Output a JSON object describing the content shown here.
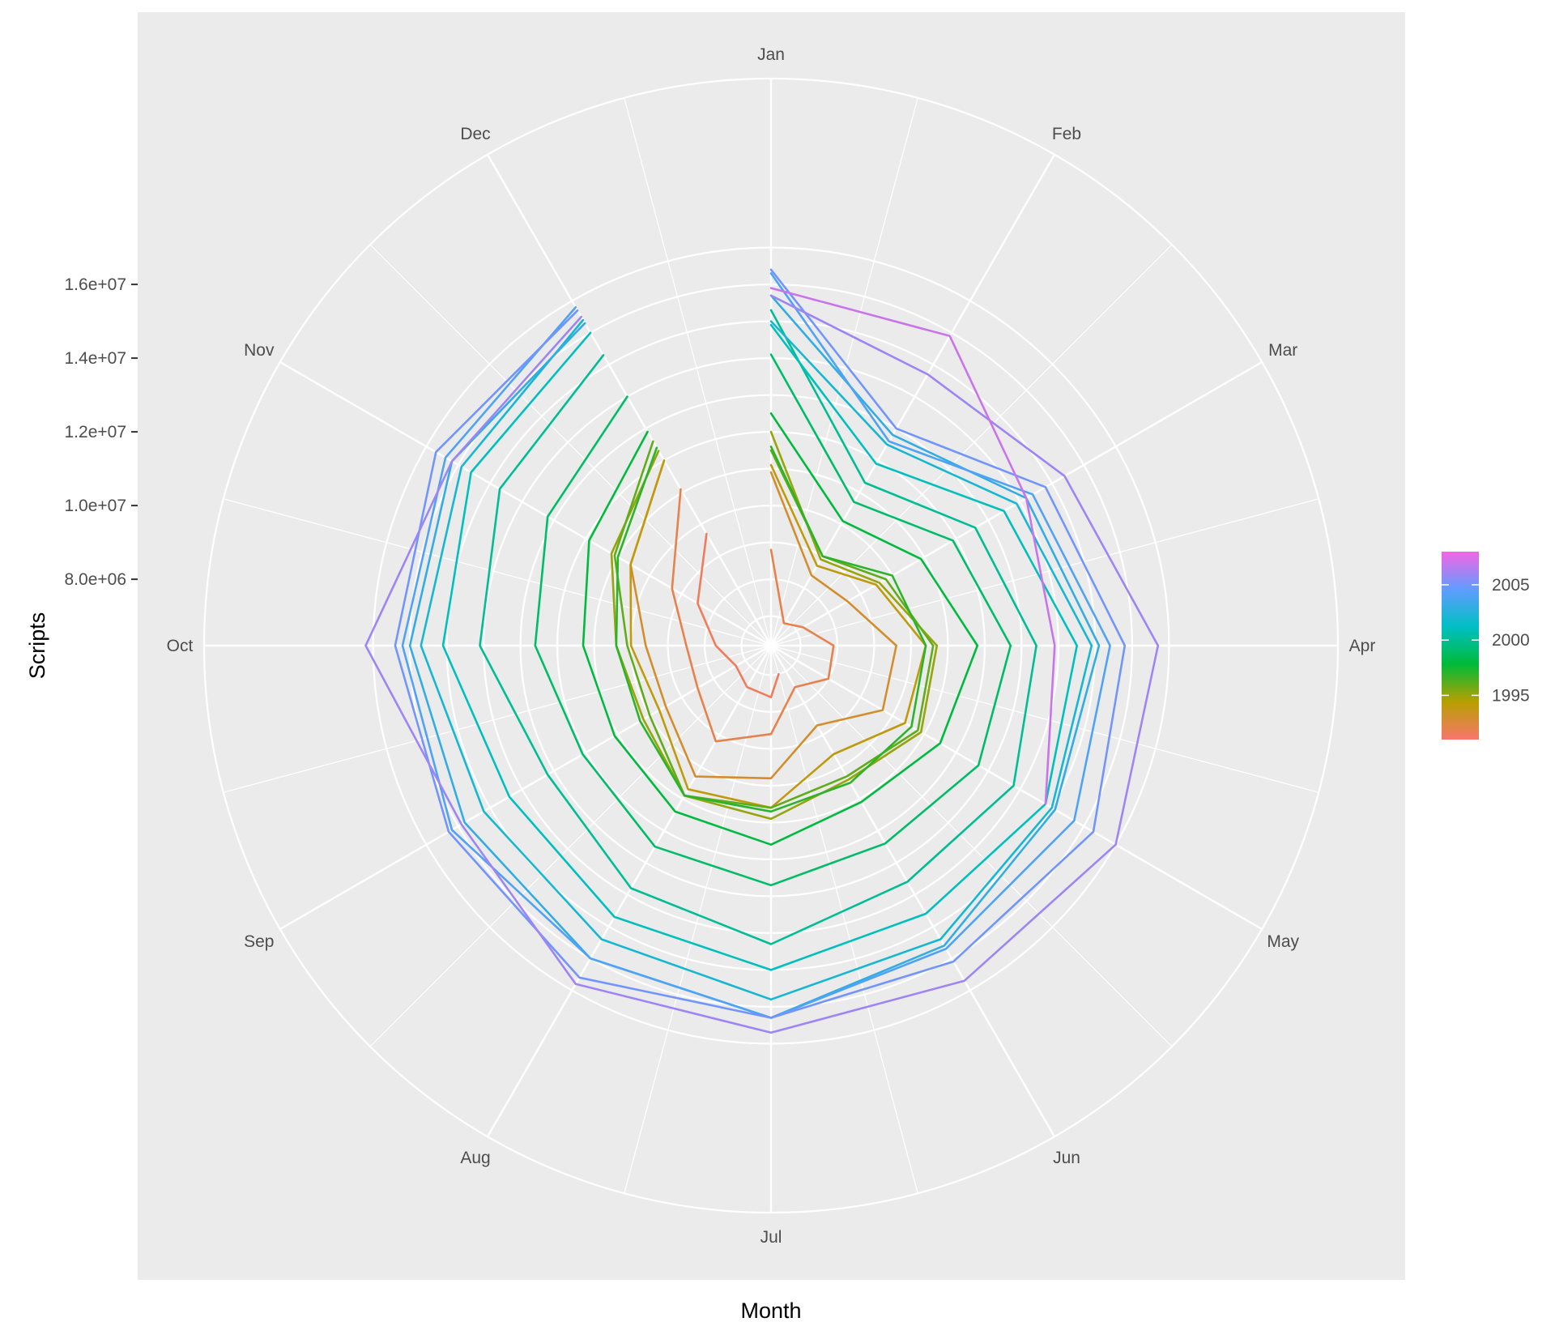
{
  "chart_data": {
    "type": "line",
    "coord": "polar",
    "xlabel": "Month",
    "ylabel": "Scripts",
    "categories": [
      "Jan",
      "Feb",
      "Mar",
      "Apr",
      "May",
      "Jun",
      "Jul",
      "Aug",
      "Sep",
      "Oct",
      "Nov",
      "Dec"
    ],
    "y_ticks": [
      8000000,
      10000000,
      12000000,
      14000000,
      16000000
    ],
    "y_tick_labels": [
      "8.0e+06",
      "1.0e+07",
      "1.2e+07",
      "1.4e+07",
      "1.6e+07"
    ],
    "ylim": [
      6200000,
      18000000
    ],
    "grid": true,
    "legend": {
      "position": "right",
      "type": "colorbar",
      "title": "",
      "breaks": [
        1995,
        2000,
        2005
      ],
      "break_labels": [
        "1995",
        "2000",
        "2005"
      ],
      "range": [
        1991,
        2008
      ],
      "colors": [
        "#F8766D",
        "#B79F00",
        "#00BA38",
        "#00BFC4",
        "#619CFF",
        "#F564E3"
      ]
    },
    "series": [
      {
        "year": 1991.5,
        "x": [
          6.5,
          7,
          8,
          9,
          10,
          11,
          12
        ],
        "values": [
          7000000,
          7600000,
          7500000,
          7300000,
          7700000,
          8500000,
          9700000
        ]
      },
      {
        "year": 1992,
        "x": [
          1,
          2,
          3,
          4,
          5,
          6,
          7,
          8,
          9,
          10,
          11,
          12
        ],
        "values": [
          8800000,
          6900000,
          7200000,
          7900000,
          8000000,
          7500000,
          8600000,
          9200000,
          8500000,
          8500000,
          9300000,
          11100000
        ]
      },
      {
        "year": 1993,
        "x": [
          1,
          2,
          3,
          4,
          5,
          6,
          7,
          8,
          9,
          10,
          11,
          12
        ],
        "values": [
          10900000,
          8400000,
          8600000,
          9600000,
          9700000,
          8700000,
          9800000,
          10300000,
          9500000,
          9600000,
          10600000,
          12000000
        ]
      },
      {
        "year": 1994,
        "x": [
          1,
          2,
          3,
          4,
          5,
          6,
          7,
          8,
          9,
          10,
          11,
          12
        ],
        "values": [
          11100000,
          8700000,
          9500000,
          10400000,
          10400000,
          9600000,
          10600000,
          10700000,
          9700000,
          10000000,
          10600000,
          12000000
        ]
      },
      {
        "year": 1995,
        "x": [
          1,
          2,
          3,
          4,
          5,
          6,
          7,
          8,
          9,
          10,
          11,
          12
        ],
        "values": [
          12000000,
          8900000,
          9600000,
          10700000,
          10900000,
          10400000,
          10900000,
          10900000,
          10200000,
          10400000,
          11200000,
          12300000
        ]
      },
      {
        "year": 1996,
        "x": [
          1,
          2,
          3,
          4,
          5,
          6,
          7,
          8,
          9,
          10,
          11,
          12
        ],
        "values": [
          11500000,
          9000000,
          9800000,
          10600000,
          10800000,
          10300000,
          10600000,
          10900000,
          10000000,
          10100000,
          11100000,
          12600000
        ]
      },
      {
        "year": 1997,
        "x": [
          1,
          2,
          3,
          4,
          5,
          6,
          7,
          8,
          9,
          10,
          11,
          12
        ],
        "values": [
          11600000,
          9000000,
          10000000,
          10400000,
          10600000,
          10500000,
          10700000,
          10900000,
          10300000,
          10400000,
          11000000,
          12400000
        ]
      },
      {
        "year": 1998,
        "x": [
          1,
          2,
          3,
          4,
          5,
          6,
          7,
          8,
          9,
          10,
          11,
          12
        ],
        "values": [
          12500000,
          10100000,
          10900000,
          11800000,
          11500000,
          11100000,
          11600000,
          11400000,
          11100000,
          11300000,
          11900000,
          12900000
        ]
      },
      {
        "year": 1999,
        "x": [
          1,
          2,
          3,
          4,
          5,
          6,
          7,
          8,
          9,
          10,
          11,
          12
        ],
        "values": [
          14100000,
          10700000,
          11900000,
          12700000,
          12700000,
          12400000,
          12700000,
          12500000,
          12100000,
          12600000,
          13200000,
          14000000
        ]
      },
      {
        "year": 2000,
        "x": [
          1,
          2,
          3,
          4,
          5,
          6,
          7,
          8,
          9,
          10,
          11,
          12
        ],
        "values": [
          15300000,
          11300000,
          12600000,
          13400000,
          13800000,
          13600000,
          14300000,
          13800000,
          13200000,
          14100000,
          14700000,
          15300000
        ]
      },
      {
        "year": 2001,
        "x": [
          1,
          2,
          3,
          4,
          5,
          6,
          7,
          8,
          9,
          10,
          11,
          12
        ],
        "values": [
          14900000,
          11900000,
          13500000,
          14500000,
          14800000,
          14600000,
          15000000,
          14700000,
          14400000,
          15100000,
          15600000,
          16000000
        ]
      },
      {
        "year": 2002,
        "x": [
          1,
          2,
          3,
          4,
          5,
          6,
          7,
          8,
          9,
          10,
          11,
          12
        ],
        "values": [
          15000000,
          12500000,
          13900000,
          14900000,
          15000000,
          15400000,
          15800000,
          15400000,
          15200000,
          15700000,
          15900000,
          16400000
        ]
      },
      {
        "year": 2003,
        "x": [
          1,
          2,
          3,
          4,
          5,
          6,
          7,
          8,
          9,
          10,
          11,
          12
        ],
        "values": [
          15700000,
          12800000,
          14200000,
          15100000,
          15100000,
          15600000,
          16300000,
          16000000,
          15800000,
          16000000,
          16200000,
          16300000
        ]
      },
      {
        "year": 2004,
        "x": [
          1,
          2,
          3,
          4,
          5,
          6,
          7,
          8,
          9,
          10,
          11,
          12
        ],
        "values": [
          16300000,
          12600000,
          14400000,
          15400000,
          15700000,
          15700000,
          16300000,
          16000000,
          16200000,
          16200000,
          16400000,
          16800000
        ]
      },
      {
        "year": 2005,
        "x": [
          1,
          2,
          3,
          4,
          5,
          6,
          7,
          8,
          9,
          10,
          11,
          12
        ],
        "values": [
          16400000,
          13000000,
          14800000,
          15800000,
          16300000,
          16100000,
          16300000,
          16600000,
          16300000,
          16400000,
          16700000,
          16700000
        ]
      },
      {
        "year": 2006,
        "x": [
          1,
          2,
          3,
          4,
          5,
          6,
          7,
          8,
          9,
          10,
          11,
          12
        ],
        "values": [
          15700000,
          14700000,
          15400000,
          16700000,
          17000000,
          16700000,
          16700000,
          16800000,
          15900000,
          17200000,
          16200000,
          16500000
        ]
      },
      {
        "year": 2007,
        "x": [
          1,
          2,
          3,
          4,
          5
        ],
        "values": [
          15900000,
          15900000,
          14200000,
          13900000,
          14800000
        ]
      }
    ]
  }
}
